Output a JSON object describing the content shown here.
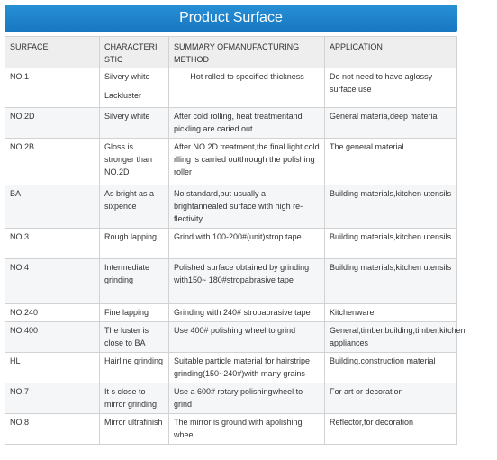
{
  "title": "Product Surface",
  "columns": [
    "SURFACE",
    "CHARACTERI STIC",
    "SUMMARY OFMANUFACTURING METHOD",
    "APPLICATION"
  ],
  "rows": [
    {
      "surface": "NO.1",
      "characteristic": "Silvery white",
      "characteristic2": "Lackluster",
      "method": "Hot rolled to specified thickness",
      "application": "Do not need to have aglossy surface use"
    },
    {
      "surface": "NO.2D",
      "characteristic": "Silvery white",
      "method": "After cold rolling, heat treatmentand pickling are caried out",
      "application": "General materia,deep material"
    },
    {
      "surface": "NO.2B",
      "characteristic": "Gloss is stronger than NO.2D",
      "method": "After NO.2D treatment,the final light cold rlling is carried outthrough the polishing roller",
      "application": "The general material"
    },
    {
      "surface": "BA",
      "characteristic": "As bright as a sixpence",
      "method": "No standard,but usually a brightannealed surface with high re-flectivity",
      "application": "Building materials,kitchen utensils"
    },
    {
      "surface": "NO.3",
      "characteristic": "Rough lapping",
      "method": "Grind with 100-200#(unit)strop tape",
      "application": "Building materials,kitchen utensils"
    },
    {
      "surface": "NO.4",
      "characteristic": "Intermediate grinding",
      "method": "Polished surface obtained by grinding with150~ 180#stropabrasive tape",
      "application": "Building materials,kitchen utensils"
    },
    {
      "surface": "NO.240",
      "characteristic": "Fine lapping",
      "method": "Grinding with 240# stropabrasive tape",
      "application": "Kitchenware"
    },
    {
      "surface": "NO.400",
      "characteristic": "The luster is close to BA",
      "method": "Use 400# polishing wheel to grind",
      "application": "General,timber,building,timber,kitchen appliances"
    },
    {
      "surface": "HL",
      "characteristic": "Hairline grinding",
      "method": "Suitable particle material for hairstripe grinding(150~240#)with many grains",
      "application": "Building.construction material"
    },
    {
      "surface": "NO.7",
      "characteristic": "It s close to mirror grinding",
      "method": "Use a 600# rotary polishingwheel to grind",
      "application": "For art or decoration"
    },
    {
      "surface": "NO.8",
      "characteristic": "Mirror ultrafinish",
      "method": "The mirror is ground with apolishing wheel",
      "application": "Reflector,for decoration"
    }
  ],
  "colors": {
    "title_bg": "#1e84cc",
    "title_text": "#ffffff",
    "border": "#d2d2d2",
    "header_bg": "#eeeeee"
  }
}
